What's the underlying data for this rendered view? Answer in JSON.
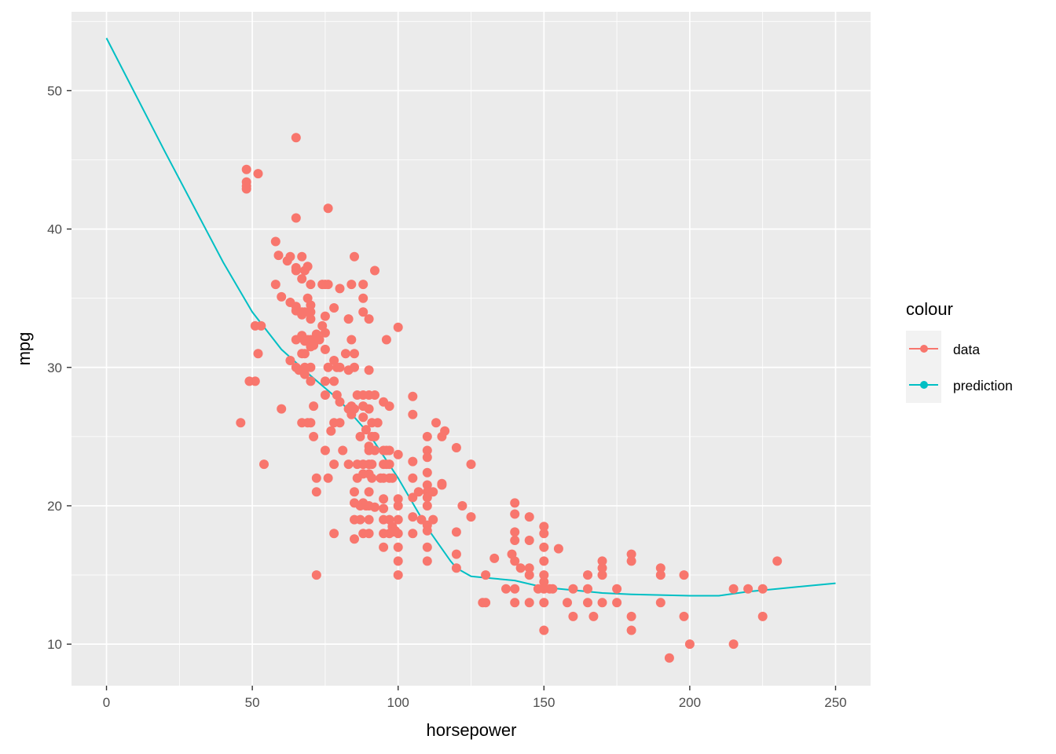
{
  "chart_data": {
    "type": "scatter",
    "xlabel": "horsepower",
    "ylabel": "mpg",
    "xlim": [
      -12,
      262
    ],
    "ylim": [
      7,
      55.7
    ],
    "x_ticks": [
      0,
      50,
      100,
      150,
      200,
      250
    ],
    "y_ticks": [
      10,
      20,
      30,
      40,
      50
    ],
    "x_tick_labels": [
      "0",
      "50",
      "100",
      "150",
      "200",
      "250"
    ],
    "y_tick_labels": [
      "10",
      "20",
      "30",
      "40",
      "50"
    ],
    "grid": true,
    "legend": {
      "title": "colour",
      "placement": "right",
      "entries": [
        {
          "label": "data",
          "color": "#F8766D"
        },
        {
          "label": "prediction",
          "color": "#00BFC4"
        }
      ]
    },
    "series": [
      {
        "name": "data",
        "kind": "points",
        "color": "#F8766D",
        "points": [
          [
            46,
            26
          ],
          [
            48,
            44.3
          ],
          [
            48,
            43.4
          ],
          [
            48,
            43.1
          ],
          [
            48,
            42.9
          ],
          [
            49,
            29
          ],
          [
            51,
            33
          ],
          [
            52,
            44
          ],
          [
            51,
            29
          ],
          [
            52,
            31
          ],
          [
            53,
            33
          ],
          [
            54,
            23
          ],
          [
            58,
            39.1
          ],
          [
            58,
            36
          ],
          [
            59,
            38.1
          ],
          [
            60,
            35.1
          ],
          [
            60,
            27
          ],
          [
            62,
            37.7
          ],
          [
            63,
            38
          ],
          [
            63,
            34.7
          ],
          [
            63,
            30.5
          ],
          [
            65,
            46.6
          ],
          [
            65,
            40.8
          ],
          [
            65,
            37.2
          ],
          [
            65,
            37
          ],
          [
            65,
            34.4
          ],
          [
            65,
            34.1
          ],
          [
            65,
            32
          ],
          [
            65,
            30
          ],
          [
            66,
            29.8
          ],
          [
            67,
            38
          ],
          [
            67,
            36.4
          ],
          [
            67,
            34
          ],
          [
            67,
            33.8
          ],
          [
            67,
            32.3
          ],
          [
            67,
            31
          ],
          [
            67,
            26
          ],
          [
            68,
            37
          ],
          [
            68,
            34
          ],
          [
            68,
            31.9
          ],
          [
            68,
            31
          ],
          [
            68,
            30
          ],
          [
            68,
            29.5
          ],
          [
            69,
            37.3
          ],
          [
            69,
            35
          ],
          [
            69,
            32
          ],
          [
            69,
            26
          ],
          [
            70,
            36
          ],
          [
            70,
            34.5
          ],
          [
            70,
            34
          ],
          [
            70,
            33.5
          ],
          [
            70,
            32
          ],
          [
            70,
            31.5
          ],
          [
            70,
            30
          ],
          [
            70,
            29
          ],
          [
            70,
            26
          ],
          [
            71,
            32
          ],
          [
            71,
            31.6
          ],
          [
            71,
            27.2
          ],
          [
            71,
            25
          ],
          [
            72,
            32.4
          ],
          [
            72,
            22
          ],
          [
            72,
            21
          ],
          [
            72,
            15
          ],
          [
            73,
            32
          ],
          [
            74,
            36
          ],
          [
            74,
            33
          ],
          [
            75,
            36
          ],
          [
            75,
            33.7
          ],
          [
            75,
            32.5
          ],
          [
            75,
            31.3
          ],
          [
            75,
            29
          ],
          [
            75,
            28
          ],
          [
            75,
            24
          ],
          [
            76,
            41.5
          ],
          [
            76,
            36
          ],
          [
            76,
            30
          ],
          [
            76,
            22
          ],
          [
            77,
            25.4
          ],
          [
            78,
            34.3
          ],
          [
            78,
            30.5
          ],
          [
            78,
            29
          ],
          [
            78,
            26
          ],
          [
            78,
            23
          ],
          [
            78,
            18
          ],
          [
            79,
            30
          ],
          [
            79,
            28
          ],
          [
            80,
            35.7
          ],
          [
            80,
            30
          ],
          [
            80,
            27.5
          ],
          [
            80,
            26
          ],
          [
            81,
            24
          ],
          [
            82,
            31
          ],
          [
            83,
            33.5
          ],
          [
            83,
            29.8
          ],
          [
            83,
            27
          ],
          [
            83,
            23
          ],
          [
            84,
            36
          ],
          [
            84,
            32
          ],
          [
            84,
            27.2
          ],
          [
            84,
            26.6
          ],
          [
            85,
            38
          ],
          [
            85,
            31
          ],
          [
            85,
            30
          ],
          [
            85,
            27
          ],
          [
            85,
            21
          ],
          [
            85,
            20.2
          ],
          [
            85,
            19
          ],
          [
            85,
            17.6
          ],
          [
            86,
            28
          ],
          [
            86,
            23
          ],
          [
            86,
            22
          ],
          [
            87,
            25
          ],
          [
            87,
            20
          ],
          [
            87,
            19
          ],
          [
            88,
            36
          ],
          [
            88,
            35
          ],
          [
            88,
            34
          ],
          [
            88,
            28
          ],
          [
            88,
            27.2
          ],
          [
            88,
            26.4
          ],
          [
            88,
            23
          ],
          [
            88,
            22.3
          ],
          [
            88,
            20.2
          ],
          [
            88,
            18
          ],
          [
            89,
            25.5
          ],
          [
            89,
            20
          ],
          [
            90,
            29.8
          ],
          [
            90,
            28
          ],
          [
            90,
            27
          ],
          [
            90,
            24.3
          ],
          [
            90,
            24
          ],
          [
            90,
            23
          ],
          [
            90,
            22.3
          ],
          [
            90,
            21
          ],
          [
            90,
            20
          ],
          [
            90,
            19
          ],
          [
            90,
            18
          ],
          [
            90,
            33.5
          ],
          [
            91,
            26
          ],
          [
            91,
            25
          ],
          [
            91,
            23
          ],
          [
            91,
            22
          ],
          [
            92,
            37
          ],
          [
            92,
            28
          ],
          [
            92,
            25
          ],
          [
            92,
            24
          ],
          [
            92,
            19.9
          ],
          [
            93,
            26
          ],
          [
            94,
            22
          ],
          [
            95,
            27.5
          ],
          [
            95,
            24
          ],
          [
            95,
            23
          ],
          [
            95,
            22
          ],
          [
            95,
            20.5
          ],
          [
            95,
            19.8
          ],
          [
            95,
            19
          ],
          [
            95,
            18
          ],
          [
            95,
            17
          ],
          [
            96,
            32
          ],
          [
            96,
            24
          ],
          [
            96,
            23
          ],
          [
            97,
            27.2
          ],
          [
            97,
            24
          ],
          [
            97,
            23
          ],
          [
            97,
            22
          ],
          [
            97,
            19
          ],
          [
            97,
            18
          ],
          [
            98,
            18.5
          ],
          [
            98,
            18.1
          ],
          [
            98,
            22
          ],
          [
            99,
            18.2
          ],
          [
            100,
            32.9
          ],
          [
            100,
            23.7
          ],
          [
            100,
            20.5
          ],
          [
            100,
            20
          ],
          [
            100,
            19
          ],
          [
            100,
            18
          ],
          [
            100,
            17
          ],
          [
            100,
            16
          ],
          [
            100,
            15
          ],
          [
            105,
            27.9
          ],
          [
            105,
            26.6
          ],
          [
            105,
            23.2
          ],
          [
            105,
            22
          ],
          [
            105,
            20.6
          ],
          [
            105,
            19.2
          ],
          [
            105,
            18
          ],
          [
            107,
            21
          ],
          [
            108,
            19
          ],
          [
            110,
            25
          ],
          [
            110,
            24
          ],
          [
            110,
            23.5
          ],
          [
            110,
            22.4
          ],
          [
            110,
            21.5
          ],
          [
            110,
            21
          ],
          [
            110,
            20.6
          ],
          [
            110,
            20
          ],
          [
            110,
            18.6
          ],
          [
            110,
            18.2
          ],
          [
            110,
            17
          ],
          [
            110,
            16
          ],
          [
            112,
            19
          ],
          [
            112,
            21
          ],
          [
            113,
            26
          ],
          [
            115,
            25
          ],
          [
            115,
            21.6
          ],
          [
            115,
            21.5
          ],
          [
            116,
            25.4
          ],
          [
            120,
            24.2
          ],
          [
            120,
            18.1
          ],
          [
            120,
            16.5
          ],
          [
            120,
            15.5
          ],
          [
            122,
            20
          ],
          [
            125,
            23
          ],
          [
            125,
            19.2
          ],
          [
            129,
            13
          ],
          [
            130,
            13
          ],
          [
            130,
            15
          ],
          [
            133,
            16.2
          ],
          [
            137,
            14
          ],
          [
            139,
            16.5
          ],
          [
            140,
            20.2
          ],
          [
            140,
            19.4
          ],
          [
            140,
            18.1
          ],
          [
            140,
            17.5
          ],
          [
            140,
            16
          ],
          [
            140,
            14
          ],
          [
            140,
            13
          ],
          [
            142,
            15.5
          ],
          [
            145,
            19.2
          ],
          [
            145,
            17.5
          ],
          [
            145,
            15.5
          ],
          [
            145,
            15
          ],
          [
            145,
            13
          ],
          [
            148,
            14
          ],
          [
            150,
            18.5
          ],
          [
            150,
            18
          ],
          [
            150,
            17
          ],
          [
            150,
            16
          ],
          [
            150,
            15
          ],
          [
            150,
            14.5
          ],
          [
            150,
            14
          ],
          [
            150,
            13
          ],
          [
            150,
            11
          ],
          [
            152,
            14
          ],
          [
            153,
            14
          ],
          [
            155,
            16.9
          ],
          [
            158,
            13
          ],
          [
            160,
            14
          ],
          [
            160,
            12
          ],
          [
            165,
            15
          ],
          [
            165,
            14
          ],
          [
            165,
            13
          ],
          [
            167,
            12
          ],
          [
            170,
            16
          ],
          [
            170,
            15.5
          ],
          [
            170,
            15
          ],
          [
            170,
            13
          ],
          [
            175,
            14
          ],
          [
            175,
            13
          ],
          [
            180,
            16.5
          ],
          [
            180,
            16
          ],
          [
            180,
            12
          ],
          [
            180,
            11
          ],
          [
            190,
            15.5
          ],
          [
            190,
            15
          ],
          [
            190,
            13
          ],
          [
            193,
            9
          ],
          [
            198,
            15
          ],
          [
            198,
            12
          ],
          [
            200,
            10
          ],
          [
            215,
            14
          ],
          [
            215,
            10
          ],
          [
            220,
            14
          ],
          [
            225,
            14
          ],
          [
            225,
            12
          ],
          [
            230,
            16
          ]
        ]
      },
      {
        "name": "prediction",
        "kind": "line",
        "color": "#00BFC4",
        "points": [
          [
            0,
            53.8
          ],
          [
            20,
            45.6
          ],
          [
            40,
            37.6
          ],
          [
            50,
            34.0
          ],
          [
            60,
            31.3
          ],
          [
            70,
            29.4
          ],
          [
            80,
            27.6
          ],
          [
            90,
            25.2
          ],
          [
            100,
            22.0
          ],
          [
            110,
            18.4
          ],
          [
            118,
            16.0
          ],
          [
            120,
            15.5
          ],
          [
            125,
            14.9
          ],
          [
            130,
            14.8
          ],
          [
            140,
            14.6
          ],
          [
            150,
            14.1
          ],
          [
            160,
            13.9
          ],
          [
            170,
            13.7
          ],
          [
            180,
            13.6
          ],
          [
            190,
            13.55
          ],
          [
            200,
            13.5
          ],
          [
            210,
            13.5
          ],
          [
            220,
            13.8
          ],
          [
            230,
            14.0
          ],
          [
            240,
            14.2
          ],
          [
            250,
            14.4
          ]
        ]
      }
    ]
  }
}
